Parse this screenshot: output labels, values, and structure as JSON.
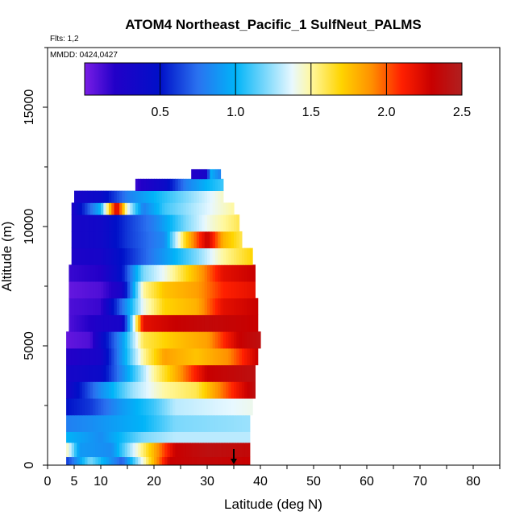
{
  "chart_data": {
    "type": "heatmap",
    "title": "ATOM4 Northeast_Pacific_1 SulfNeut_PALMS",
    "annotations": {
      "flights": "Flts: 1,2",
      "dates": "MMDD: 0424,0427"
    },
    "xlabel": "Latitude (deg N)",
    "ylabel": "Altitude (m)",
    "xlim": [
      0,
      85
    ],
    "ylim": [
      0,
      17500
    ],
    "xticks": [
      0,
      5,
      10,
      20,
      30,
      40,
      50,
      60,
      70,
      80
    ],
    "yticks": [
      0,
      5000,
      10000,
      15000
    ],
    "grid": false,
    "colorbar": {
      "range": [
        0,
        2.5
      ],
      "ticks": [
        0.5,
        1.0,
        1.5,
        2.0,
        2.5
      ],
      "tick_labels": [
        "0.5",
        "1.0",
        "1.5",
        "2.0",
        "2.5"
      ],
      "colors": [
        "#7a1ee6",
        "#2200c8",
        "#0010c8",
        "#2a72f0",
        "#00b4f8",
        "#e8f8ff",
        "#fff8a0",
        "#ffd400",
        "#ff9000",
        "#ff2000",
        "#c80000",
        "#b02020"
      ],
      "stops": [
        0,
        0.08,
        0.2,
        0.3,
        0.4,
        0.55,
        0.6,
        0.68,
        0.76,
        0.84,
        0.92,
        1
      ]
    },
    "marker": {
      "symbol": "down-arrow",
      "x": 35,
      "y": 0
    },
    "layers": [
      {
        "y": [
          0,
          350
        ],
        "x": [
          3.5,
          38
        ],
        "segments": [
          [
            3.5,
            0.6
          ],
          [
            8,
            1.2
          ],
          [
            14,
            0.7
          ],
          [
            20,
            1.8
          ],
          [
            23,
            2.3
          ],
          [
            29,
            2.35
          ],
          [
            38,
            2.3
          ]
        ]
      },
      {
        "y": [
          350,
          950
        ],
        "x": [
          3.5,
          38
        ],
        "segments": [
          [
            3.5,
            1.5
          ],
          [
            6,
            0.9
          ],
          [
            12,
            0.85
          ],
          [
            20,
            1.8
          ],
          [
            24,
            2.3
          ],
          [
            30,
            2.4
          ],
          [
            38,
            2.35
          ]
        ]
      },
      {
        "y": [
          950,
          1400
        ],
        "x": [
          3.5,
          38
        ],
        "segments": [
          [
            3.5,
            1.0
          ],
          [
            10,
            0.85
          ],
          [
            18,
            1.2
          ],
          [
            24,
            1.3
          ],
          [
            38,
            1.3
          ]
        ]
      },
      {
        "y": [
          1400,
          2100
        ],
        "x": [
          3.5,
          38
        ],
        "segments": [
          [
            3.5,
            0.8
          ],
          [
            8,
            0.85
          ],
          [
            18,
            1.0
          ],
          [
            24,
            1.2
          ],
          [
            38,
            1.25
          ]
        ]
      },
      {
        "y": [
          2100,
          2800
        ],
        "x": [
          3.5,
          38.5
        ],
        "segments": [
          [
            3.5,
            0.5
          ],
          [
            8,
            0.6
          ],
          [
            14,
            0.9
          ],
          [
            20,
            1.1
          ],
          [
            24,
            1.3
          ],
          [
            38.5,
            1.4
          ]
        ]
      },
      {
        "y": [
          2800,
          3500
        ],
        "x": [
          3.5,
          39
        ],
        "segments": [
          [
            3.5,
            0.3
          ],
          [
            10,
            0.85
          ],
          [
            16,
            1.25
          ],
          [
            22,
            1.5
          ],
          [
            28,
            1.6
          ],
          [
            39,
            2.4
          ]
        ]
      },
      {
        "y": [
          3500,
          4200
        ],
        "x": [
          3.5,
          39
        ],
        "segments": [
          [
            3.5,
            0.3
          ],
          [
            10,
            0.4
          ],
          [
            15,
            0.95
          ],
          [
            20,
            1.5
          ],
          [
            24,
            1.8
          ],
          [
            30,
            2.3
          ],
          [
            39,
            2.4
          ]
        ]
      },
      {
        "y": [
          4200,
          4900
        ],
        "x": [
          3.5,
          39.5
        ],
        "segments": [
          [
            3.5,
            0.2
          ],
          [
            10,
            0.3
          ],
          [
            14,
            0.9
          ],
          [
            18,
            1.5
          ],
          [
            22,
            1.85
          ],
          [
            28,
            1.75
          ],
          [
            34,
            1.9
          ],
          [
            39.5,
            2.3
          ]
        ]
      },
      {
        "y": [
          4900,
          5600
        ],
        "x": [
          3.5,
          40
        ],
        "segments": [
          [
            3.5,
            0.05
          ],
          [
            8,
            0.1
          ],
          [
            14,
            0.9
          ],
          [
            18,
            1.6
          ],
          [
            24,
            1.75
          ],
          [
            30,
            1.85
          ],
          [
            36,
            2.3
          ],
          [
            40,
            2.4
          ]
        ]
      },
      {
        "y": [
          5600,
          6300
        ],
        "x": [
          4,
          39.5
        ],
        "segments": [
          [
            4,
            0.1
          ],
          [
            10,
            0.25
          ],
          [
            14,
            0.3
          ],
          [
            18,
            2.2
          ],
          [
            24,
            2.3
          ],
          [
            30,
            2.35
          ],
          [
            39.5,
            2.3
          ]
        ]
      },
      {
        "y": [
          6300,
          7000
        ],
        "x": [
          4,
          39.5
        ],
        "segments": [
          [
            4,
            0.1
          ],
          [
            10,
            0.15
          ],
          [
            15,
            0.9
          ],
          [
            18,
            1.4
          ],
          [
            22,
            1.7
          ],
          [
            28,
            1.8
          ],
          [
            33,
            2.2
          ],
          [
            39.5,
            2.3
          ]
        ]
      },
      {
        "y": [
          7000,
          7700
        ],
        "x": [
          4,
          39
        ],
        "segments": [
          [
            4,
            0.05
          ],
          [
            10,
            0.1
          ],
          [
            14,
            0.3
          ],
          [
            18,
            1.5
          ],
          [
            22,
            1.75
          ],
          [
            28,
            1.85
          ],
          [
            33,
            2.1
          ],
          [
            39,
            2.2
          ]
        ]
      },
      {
        "y": [
          7700,
          8400
        ],
        "x": [
          4,
          39
        ],
        "segments": [
          [
            4,
            0.15
          ],
          [
            10,
            0.2
          ],
          [
            14,
            0.5
          ],
          [
            18,
            1.2
          ],
          [
            22,
            1.4
          ],
          [
            28,
            1.8
          ],
          [
            33,
            2.2
          ],
          [
            39,
            2.3
          ]
        ]
      },
      {
        "y": [
          8400,
          9100
        ],
        "x": [
          4.5,
          38.5
        ],
        "segments": [
          [
            4.5,
            0.25
          ],
          [
            10,
            0.3
          ],
          [
            15,
            0.55
          ],
          [
            22,
            0.9
          ],
          [
            28,
            1.2
          ],
          [
            33,
            1.5
          ],
          [
            38.5,
            1.7
          ]
        ]
      },
      {
        "y": [
          9100,
          9800
        ],
        "x": [
          4.5,
          36.5
        ],
        "segments": [
          [
            4.5,
            0.3
          ],
          [
            10,
            0.35
          ],
          [
            15,
            0.6
          ],
          [
            22,
            0.85
          ],
          [
            26,
            1.7
          ],
          [
            30,
            2.3
          ],
          [
            33,
            1.8
          ],
          [
            36.5,
            1.6
          ]
        ]
      },
      {
        "y": [
          9800,
          10500
        ],
        "x": [
          4.5,
          36
        ],
        "segments": [
          [
            4.5,
            0.3
          ],
          [
            10,
            0.35
          ],
          [
            15,
            0.6
          ],
          [
            20,
            0.8
          ],
          [
            26,
            1.2
          ],
          [
            30,
            1.4
          ],
          [
            36,
            1.6
          ]
        ]
      },
      {
        "y": [
          10500,
          11000
        ],
        "x": [
          4.5,
          35
        ],
        "segments": [
          [
            4.5,
            0.25
          ],
          [
            10,
            1.0
          ],
          [
            13,
            2.3
          ],
          [
            15,
            1.4
          ],
          [
            18,
            0.8
          ],
          [
            22,
            1.1
          ],
          [
            28,
            1.3
          ],
          [
            35,
            1.5
          ]
        ]
      },
      {
        "y": [
          11000,
          11500
        ],
        "x": [
          5,
          33
        ],
        "segments": [
          [
            5,
            0.3
          ],
          [
            10,
            0.4
          ],
          [
            15,
            0.8
          ],
          [
            20,
            1.0
          ],
          [
            26,
            1.2
          ],
          [
            33,
            1.45
          ]
        ]
      },
      {
        "y": [
          11500,
          12000
        ],
        "x": [
          16.5,
          33
        ],
        "segments": [
          [
            16.5,
            0.15
          ],
          [
            22,
            0.4
          ],
          [
            26,
            0.8
          ],
          [
            30,
            1.0
          ],
          [
            33,
            1.1
          ]
        ]
      },
      {
        "y": [
          12000,
          12400
        ],
        "x": [
          27,
          32.5
        ],
        "segments": [
          [
            27,
            0.2
          ],
          [
            30,
            0.3
          ],
          [
            30.5,
            1.0
          ],
          [
            32.5,
            0.8
          ]
        ]
      }
    ]
  }
}
